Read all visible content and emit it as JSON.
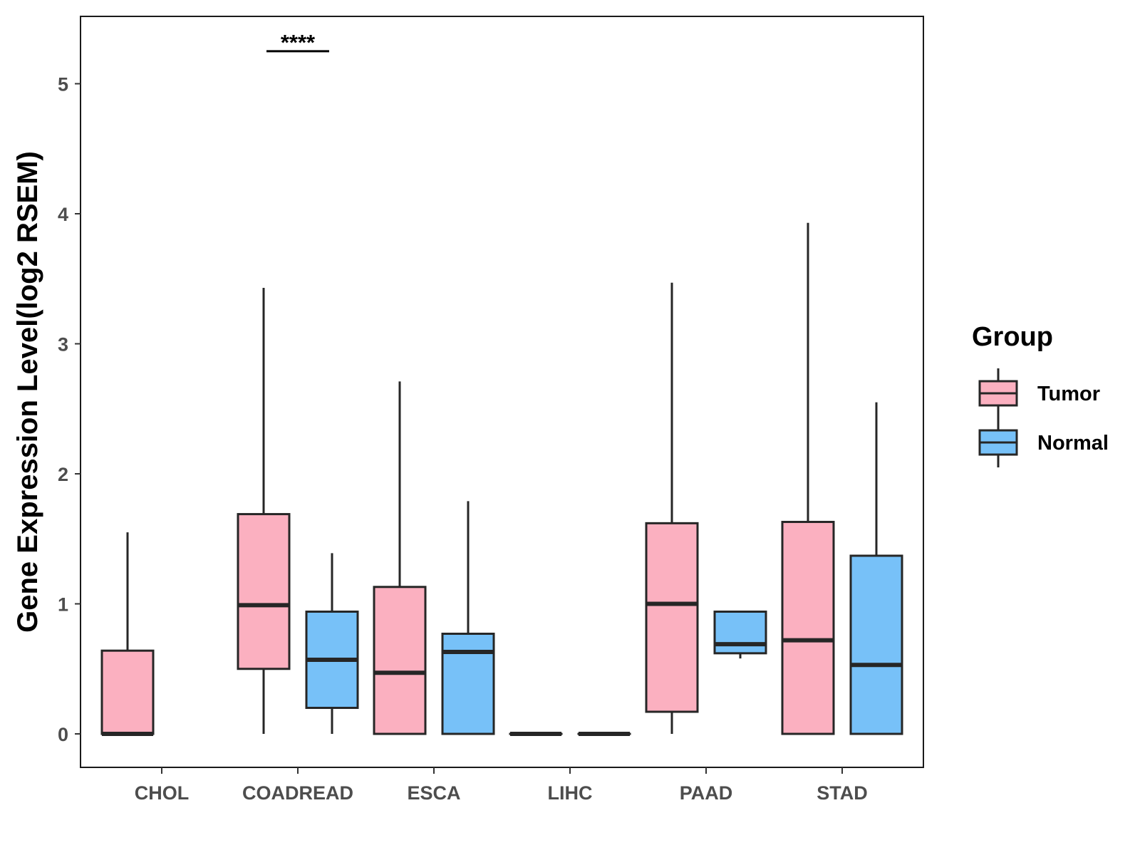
{
  "chart_data": {
    "type": "boxplot",
    "title": "",
    "xlabel": "",
    "ylabel": "Gene Expression Level(log2 RSEM)",
    "ylim": [
      -0.25,
      5.5
    ],
    "yticks": [
      0,
      1,
      2,
      3,
      4,
      5
    ],
    "categories": [
      "CHOL",
      "COADREAD",
      "ESCA",
      "LIHC",
      "PAAD",
      "STAD"
    ],
    "legend": {
      "title": "Group",
      "position": "right"
    },
    "series": [
      {
        "name": "Tumor",
        "color": "#fbb0c0",
        "boxes": [
          {
            "category": "CHOL",
            "min": 0,
            "q1": 0,
            "median": 0,
            "q3": 0.64,
            "max": 1.55
          },
          {
            "category": "COADREAD",
            "min": 0,
            "q1": 0.5,
            "median": 0.99,
            "q3": 1.69,
            "max": 3.43
          },
          {
            "category": "ESCA",
            "min": 0,
            "q1": 0,
            "median": 0.47,
            "q3": 1.13,
            "max": 2.71
          },
          {
            "category": "LIHC",
            "min": 0,
            "q1": 0,
            "median": 0,
            "q3": 0,
            "max": 0
          },
          {
            "category": "PAAD",
            "min": 0,
            "q1": 0.17,
            "median": 1.0,
            "q3": 1.62,
            "max": 3.47
          },
          {
            "category": "STAD",
            "min": 0,
            "q1": 0,
            "median": 0.72,
            "q3": 1.63,
            "max": 3.93
          }
        ]
      },
      {
        "name": "Normal",
        "color": "#77c1f8",
        "boxes": [
          {
            "category": "CHOL",
            "present": false
          },
          {
            "category": "COADREAD",
            "min": 0,
            "q1": 0.2,
            "median": 0.57,
            "q3": 0.94,
            "max": 1.39
          },
          {
            "category": "ESCA",
            "min": 0,
            "q1": 0,
            "median": 0.63,
            "q3": 0.77,
            "max": 1.79
          },
          {
            "category": "LIHC",
            "min": 0,
            "q1": 0,
            "median": 0,
            "q3": 0,
            "max": 0
          },
          {
            "category": "PAAD",
            "min": 0.58,
            "q1": 0.62,
            "median": 0.69,
            "q3": 0.94,
            "max": 0.94
          },
          {
            "category": "STAD",
            "min": 0,
            "q1": 0,
            "median": 0.53,
            "q3": 1.37,
            "max": 2.55
          }
        ]
      }
    ],
    "annotations": [
      {
        "category": "COADREAD",
        "label": "****",
        "y": 5.25
      }
    ]
  }
}
